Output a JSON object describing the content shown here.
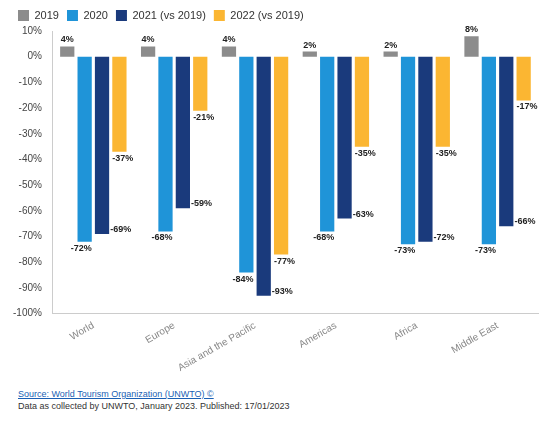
{
  "chart_data": {
    "type": "bar",
    "categories": [
      "World",
      "Europe",
      "Asia and the Pacific",
      "Americas",
      "Africa",
      "Middle East"
    ],
    "series": [
      {
        "name": "2019",
        "color": "#8c8c8c",
        "values": [
          4,
          4,
          4,
          2,
          2,
          8
        ],
        "value_labels": [
          "4%",
          "4%",
          "4%",
          "2%",
          "2%",
          "8%"
        ]
      },
      {
        "name": "2020",
        "color": "#1f94d8",
        "values": [
          -72,
          -68,
          -84,
          -68,
          -73,
          -73
        ],
        "value_labels": [
          "-72%",
          "-68%",
          "-84%",
          "-68%",
          "-73%",
          "-73%"
        ]
      },
      {
        "name": "2021 (vs 2019)",
        "color": "#1a3a7c",
        "values": [
          -69,
          -59,
          -93,
          -63,
          -72,
          -66
        ],
        "value_labels": [
          "-69%",
          "-59%",
          "-93%",
          "-63%",
          "-72%",
          "-66%"
        ]
      },
      {
        "name": "2022 (vs 2019)",
        "color": "#fbb632",
        "values": [
          -37,
          -21,
          -77,
          -35,
          -35,
          -17
        ],
        "value_labels": [
          "-37%",
          "-21%",
          "-77%",
          "-35%",
          "-35%",
          "-17%"
        ]
      }
    ],
    "ylim": [
      -100,
      10
    ],
    "yticks": [
      {
        "value": 10,
        "label": "10%"
      },
      {
        "value": 0,
        "label": "0%"
      },
      {
        "value": -10,
        "label": "-10%"
      },
      {
        "value": -20,
        "label": "-20%"
      },
      {
        "value": -30,
        "label": "-30%"
      },
      {
        "value": -40,
        "label": "-40%"
      },
      {
        "value": -50,
        "label": "-50%"
      },
      {
        "value": -60,
        "label": "-60%"
      },
      {
        "value": -70,
        "label": "-70%"
      },
      {
        "value": -80,
        "label": "-80%"
      },
      {
        "value": -90,
        "label": "-90%"
      },
      {
        "value": -100,
        "label": "-100%"
      }
    ],
    "grid": false,
    "legend": "top-left",
    "data_labels": true
  },
  "source": "Source: World Tourism Organization (UNWTO) ©",
  "note": "Data as collected by UNWTO, January 2023. Published: 17/01/2023"
}
